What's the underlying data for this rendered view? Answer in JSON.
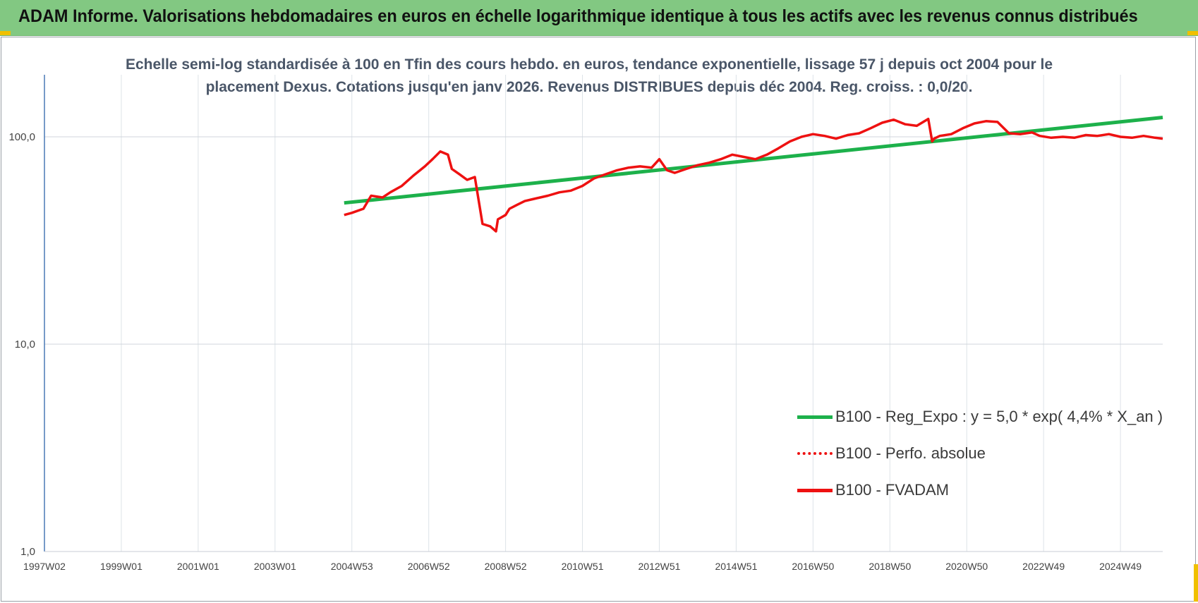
{
  "header": {
    "title": "ADAM Informe. Valorisations hebdomadaires en euros en échelle logarithmique identique à tous les actifs avec les revenus connus distribués"
  },
  "colors": {
    "banner": "#82c882",
    "regression": "#1db14b",
    "series": "#ee1111",
    "accent": "#f0c000"
  },
  "chart_data": {
    "type": "line",
    "title_lines": [
      "Echelle semi-log standardisée à 100 en Tfin des cours hebdo. en euros, tendance exponentielle, lissage 57 j depuis oct 2004 pour le",
      "placement Dexus. Cotations jusqu'en janv 2026. Revenus DISTRIBUES depuis déc 2004. Reg. croiss. : 0,0/20."
    ],
    "y_scale": "log",
    "ylim": [
      1,
      200
    ],
    "y_ticks": [
      "1,0",
      "10,0",
      "100,0"
    ],
    "y_tick_values": [
      1,
      10,
      100
    ],
    "x_ticks": [
      "1997W02",
      "1999W01",
      "2001W01",
      "2003W01",
      "2004W53",
      "2006W52",
      "2008W52",
      "2010W51",
      "2012W51",
      "2014W51",
      "2016W50",
      "2018W50",
      "2020W50",
      "2022W49",
      "2024W49"
    ],
    "x_tick_years": [
      1997.0,
      1999.0,
      2001.0,
      2003.0,
      2005.0,
      2007.0,
      2009.0,
      2011.0,
      2013.0,
      2015.0,
      2017.0,
      2019.0,
      2021.0,
      2023.0,
      2025.0
    ],
    "xlim_years": [
      1997.0,
      2026.1
    ],
    "grid": true,
    "legend_position": "lower-right",
    "series": [
      {
        "name": "B100 - Reg_Expo : y = 5,0 * exp( 4,4% *  X_an )",
        "style": "solid-green",
        "x": [
          2004.8,
          2026.1
        ],
        "y": [
          48,
          124
        ]
      },
      {
        "name": "B100 - Perfo. absolue",
        "style": "dotted-red",
        "x": [],
        "y": []
      },
      {
        "name": "B100 - FVADAM",
        "style": "solid-red",
        "x": [
          2004.8,
          2005.0,
          2005.3,
          2005.5,
          2005.8,
          2006.0,
          2006.3,
          2006.6,
          2006.9,
          2007.1,
          2007.3,
          2007.5,
          2007.6,
          2007.8,
          2008.0,
          2008.2,
          2008.4,
          2008.6,
          2008.75,
          2008.8,
          2009.0,
          2009.1,
          2009.3,
          2009.5,
          2009.7,
          2009.9,
          2010.1,
          2010.4,
          2010.7,
          2011.0,
          2011.3,
          2011.6,
          2011.9,
          2012.2,
          2012.5,
          2012.8,
          2013.0,
          2013.2,
          2013.4,
          2013.7,
          2014.0,
          2014.3,
          2014.6,
          2014.9,
          2015.2,
          2015.5,
          2015.8,
          2016.1,
          2016.4,
          2016.7,
          2017.0,
          2017.3,
          2017.6,
          2017.9,
          2018.2,
          2018.5,
          2018.8,
          2019.1,
          2019.4,
          2019.7,
          2020.0,
          2020.1,
          2020.15,
          2020.3,
          2020.6,
          2020.9,
          2021.2,
          2021.5,
          2021.8,
          2022.1,
          2022.4,
          2022.7,
          2022.9,
          2023.2,
          2023.5,
          2023.8,
          2024.1,
          2024.4,
          2024.7,
          2025.0,
          2025.3,
          2025.6,
          2025.9,
          2026.1
        ],
        "y": [
          42,
          43,
          45,
          52,
          51,
          54,
          58,
          65,
          72,
          78,
          85,
          82,
          70,
          66,
          62,
          64,
          38,
          37,
          35,
          40,
          42,
          45,
          47,
          49,
          50,
          51,
          52,
          54,
          55,
          58,
          63,
          66,
          69,
          71,
          72,
          71,
          78,
          69,
          67,
          70,
          73,
          75,
          78,
          82,
          80,
          78,
          82,
          88,
          95,
          100,
          103,
          101,
          98,
          102,
          104,
          110,
          117,
          121,
          115,
          113,
          122,
          95,
          98,
          101,
          103,
          110,
          116,
          119,
          118,
          104,
          103,
          105,
          101,
          99,
          100,
          99,
          102,
          101,
          103,
          100,
          99,
          101,
          99,
          98
        ]
      }
    ]
  }
}
